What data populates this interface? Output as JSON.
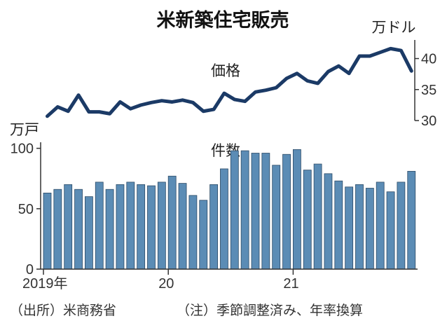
{
  "title": "米新築住宅販売",
  "source_note": "（出所）米商務省",
  "footnote": "（注）季節調整済み、年率換算",
  "colors": {
    "line": "#1b3a66",
    "bar": "#5b8cb5",
    "bar_stroke": "#2c4a66",
    "axis": "#333333"
  },
  "chart_data": [
    {
      "type": "line",
      "series_label": "価格",
      "unit_label": "万ドル",
      "ylim": [
        30,
        43
      ],
      "y_ticks": [
        30,
        35,
        40
      ],
      "grid": false,
      "values": [
        30.7,
        32.2,
        31.5,
        34.1,
        31.4,
        31.4,
        31.1,
        33.0,
        31.9,
        32.5,
        32.9,
        33.2,
        33.0,
        33.3,
        32.9,
        31.5,
        31.8,
        34.4,
        33.4,
        33.1,
        34.6,
        34.9,
        35.3,
        36.8,
        37.6,
        36.4,
        36.0,
        37.9,
        38.8,
        37.6,
        40.4,
        40.4,
        41.0,
        41.6,
        41.3,
        38.0
      ]
    },
    {
      "type": "bar",
      "series_label": "件数",
      "unit_label": "万戸",
      "ylim": [
        0,
        105
      ],
      "y_ticks": [
        0,
        50,
        100
      ],
      "grid": false,
      "x_tick_labels": [
        "2019年",
        "20",
        "21"
      ],
      "values": [
        63,
        66,
        70,
        66,
        60,
        72,
        66,
        70,
        72,
        70,
        69,
        72,
        77,
        71,
        61,
        57,
        70,
        83,
        98,
        98,
        96,
        96,
        86,
        95,
        99,
        82,
        87,
        79,
        73,
        68,
        70,
        67,
        72,
        64,
        72,
        81
      ]
    }
  ]
}
